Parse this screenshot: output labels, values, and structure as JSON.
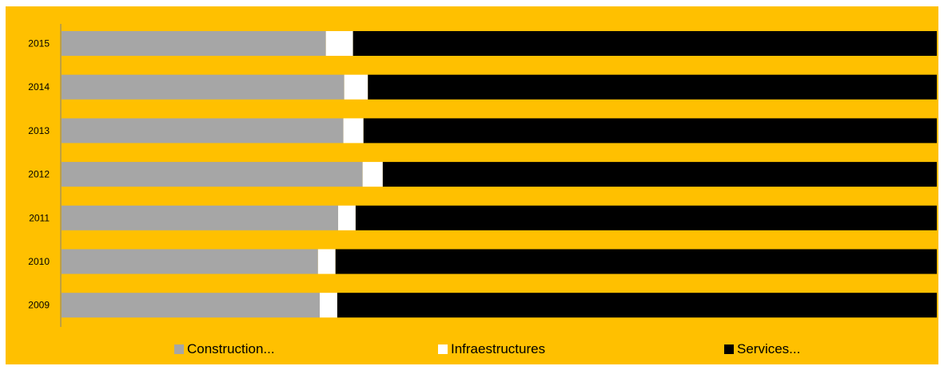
{
  "chart_data": {
    "type": "bar",
    "orientation": "horizontal",
    "stacked": "100%",
    "categories": [
      "2015",
      "2014",
      "2013",
      "2012",
      "2011",
      "2010",
      "2009"
    ],
    "series": [
      {
        "name": "Construction...",
        "color": "#a6a6a6",
        "values": [
          30.2,
          32.3,
          32.2,
          34.4,
          31.6,
          29.3,
          29.5
        ]
      },
      {
        "name": "Infraestructures",
        "color": "#ffffff",
        "values": [
          3.1,
          2.7,
          2.3,
          2.3,
          2.0,
          2.0,
          2.0
        ]
      },
      {
        "name": "Services...",
        "color": "#000000",
        "values": [
          66.7,
          65.0,
          65.5,
          63.3,
          66.4,
          68.7,
          68.5
        ]
      }
    ],
    "xlim": [
      0,
      100
    ],
    "grid": false,
    "legend_position": "bottom",
    "background_color": "#ffc000",
    "axis_color": "#808080"
  }
}
